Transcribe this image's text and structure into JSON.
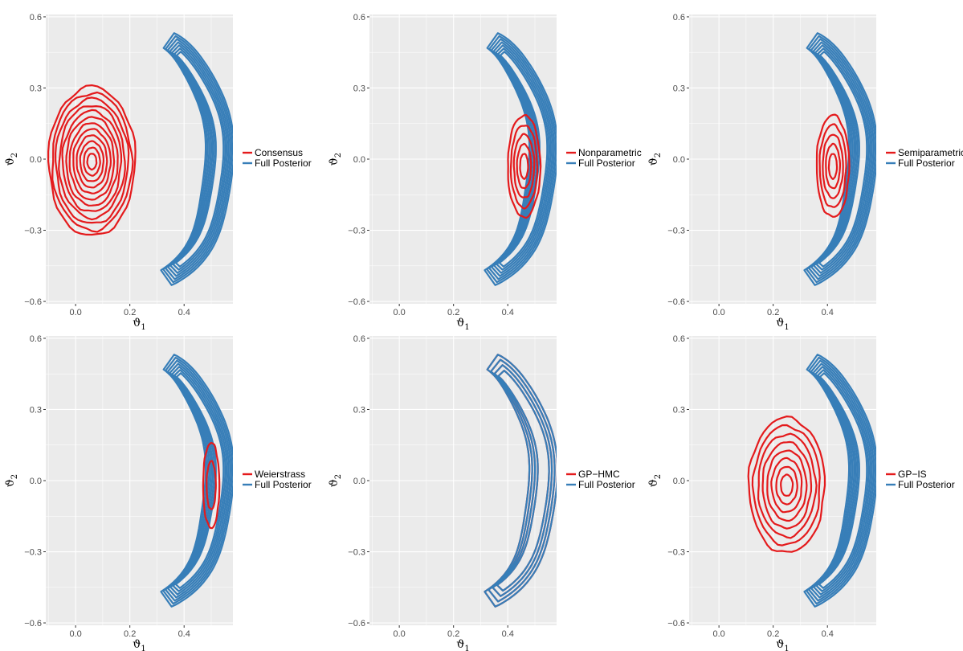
{
  "colors": {
    "method": "#e41a1c",
    "full_posterior": "#377eb8",
    "panel_bg": "#ebebeb",
    "grid": "#ffffff"
  },
  "chart_data": [
    {
      "type": "contour",
      "x": {
        "label": "ϑ",
        "label_sub": "1",
        "ticks": [
          0.0,
          0.2,
          0.4
        ],
        "tick_labels": [
          "0.0",
          "0.2",
          "0.4"
        ],
        "range": [
          -0.11,
          0.58
        ]
      },
      "y": {
        "label": "ϑ",
        "label_sub": "2",
        "ticks": [
          -0.6,
          -0.3,
          0.0,
          0.3,
          0.6
        ],
        "tick_labels": [
          "−0.6",
          "−0.3",
          "0.0",
          "0.3",
          "0.6"
        ],
        "range": [
          -0.61,
          0.61
        ]
      },
      "grid": true,
      "legend_position": "right",
      "series": [
        {
          "name": "Consensus",
          "color": "#e41a1c",
          "shape": "blob",
          "center": [
            0.06,
            -0.01
          ],
          "x_extent": [
            -0.1,
            0.22
          ],
          "y_extent": [
            -0.33,
            0.3
          ],
          "levels": 12
        },
        {
          "name": "Full Posterior",
          "color": "#377eb8",
          "shape": "banana",
          "x_extent": [
            0.24,
            0.54
          ],
          "y_extent": [
            -0.5,
            0.55
          ],
          "levels": 7
        }
      ]
    },
    {
      "type": "contour",
      "x": {
        "label": "ϑ",
        "label_sub": "1",
        "ticks": [
          0.0,
          0.2,
          0.4
        ],
        "tick_labels": [
          "0.0",
          "0.2",
          "0.4"
        ],
        "range": [
          -0.11,
          0.58
        ]
      },
      "y": {
        "label": "ϑ",
        "label_sub": "2",
        "ticks": [
          -0.6,
          -0.3,
          0.0,
          0.3,
          0.6
        ],
        "tick_labels": [
          "−0.6",
          "−0.3",
          "0.0",
          "0.3",
          "0.6"
        ],
        "range": [
          -0.61,
          0.61
        ]
      },
      "grid": true,
      "legend_position": "right",
      "series": [
        {
          "name": "Nonparametric",
          "color": "#e41a1c",
          "shape": "blob",
          "center": [
            0.46,
            -0.03
          ],
          "x_extent": [
            0.4,
            0.52
          ],
          "y_extent": [
            -0.26,
            0.17
          ],
          "levels": 5
        },
        {
          "name": "Full Posterior",
          "color": "#377eb8",
          "shape": "banana",
          "x_extent": [
            0.24,
            0.54
          ],
          "y_extent": [
            -0.5,
            0.55
          ],
          "levels": 7
        }
      ]
    },
    {
      "type": "contour",
      "x": {
        "label": "ϑ",
        "label_sub": "1",
        "ticks": [
          0.0,
          0.2,
          0.4
        ],
        "tick_labels": [
          "0.0",
          "0.2",
          "0.4"
        ],
        "range": [
          -0.11,
          0.58
        ]
      },
      "y": {
        "label": "ϑ",
        "label_sub": "2",
        "ticks": [
          -0.6,
          -0.3,
          0.0,
          0.3,
          0.6
        ],
        "tick_labels": [
          "−0.6",
          "−0.3",
          "0.0",
          "0.3",
          "0.6"
        ],
        "range": [
          -0.61,
          0.61
        ]
      },
      "grid": true,
      "legend_position": "right",
      "series": [
        {
          "name": "Semiparametric",
          "color": "#e41a1c",
          "shape": "blob",
          "center": [
            0.42,
            -0.03
          ],
          "x_extent": [
            0.36,
            0.48
          ],
          "y_extent": [
            -0.25,
            0.18
          ],
          "levels": 5
        },
        {
          "name": "Full Posterior",
          "color": "#377eb8",
          "shape": "banana",
          "x_extent": [
            0.24,
            0.54
          ],
          "y_extent": [
            -0.5,
            0.55
          ],
          "levels": 7
        }
      ]
    },
    {
      "type": "contour",
      "x": {
        "label": "ϑ",
        "label_sub": "1",
        "ticks": [
          0.0,
          0.2,
          0.4
        ],
        "tick_labels": [
          "0.0",
          "0.2",
          "0.4"
        ],
        "range": [
          -0.11,
          0.58
        ]
      },
      "y": {
        "label": "ϑ",
        "label_sub": "2",
        "ticks": [
          -0.6,
          -0.3,
          0.0,
          0.3,
          0.6
        ],
        "tick_labels": [
          "−0.6",
          "−0.3",
          "0.0",
          "0.3",
          "0.6"
        ],
        "range": [
          -0.61,
          0.61
        ]
      },
      "grid": true,
      "legend_position": "right",
      "series": [
        {
          "name": "Weierstrass",
          "color": "#e41a1c",
          "shape": "blob",
          "center": [
            0.5,
            -0.02
          ],
          "x_extent": [
            0.47,
            0.53
          ],
          "y_extent": [
            -0.18,
            0.18
          ],
          "levels": 2
        },
        {
          "name": "Full Posterior",
          "color": "#377eb8",
          "shape": "banana",
          "x_extent": [
            0.24,
            0.54
          ],
          "y_extent": [
            -0.5,
            0.55
          ],
          "levels": 7
        }
      ]
    },
    {
      "type": "contour",
      "x": {
        "label": "ϑ",
        "label_sub": "1",
        "ticks": [
          0.0,
          0.2,
          0.4
        ],
        "tick_labels": [
          "0.0",
          "0.2",
          "0.4"
        ],
        "range": [
          -0.11,
          0.58
        ]
      },
      "y": {
        "label": "ϑ",
        "label_sub": "2",
        "ticks": [
          -0.6,
          -0.3,
          0.0,
          0.3,
          0.6
        ],
        "tick_labels": [
          "−0.6",
          "−0.3",
          "0.0",
          "0.3",
          "0.6"
        ],
        "range": [
          -0.61,
          0.61
        ]
      },
      "grid": true,
      "legend_position": "right",
      "series": [
        {
          "name": "GP−HMC",
          "color": "#e41a1c",
          "shape": "banana",
          "x_extent": [
            0.24,
            0.54
          ],
          "y_extent": [
            -0.5,
            0.55
          ],
          "levels": 4
        },
        {
          "name": "Full Posterior",
          "color": "#377eb8",
          "shape": "banana",
          "x_extent": [
            0.24,
            0.54
          ],
          "y_extent": [
            -0.5,
            0.55
          ],
          "levels": 4
        }
      ]
    },
    {
      "type": "contour",
      "x": {
        "label": "ϑ",
        "label_sub": "1",
        "ticks": [
          0.0,
          0.2,
          0.4
        ],
        "tick_labels": [
          "0.0",
          "0.2",
          "0.4"
        ],
        "range": [
          -0.11,
          0.58
        ]
      },
      "y": {
        "label": "ϑ",
        "label_sub": "2",
        "ticks": [
          -0.6,
          -0.3,
          0.0,
          0.3,
          0.6
        ],
        "tick_labels": [
          "−0.6",
          "−0.3",
          "0.0",
          "0.3",
          "0.6"
        ],
        "range": [
          -0.61,
          0.61
        ]
      },
      "grid": true,
      "legend_position": "right",
      "series": [
        {
          "name": "GP−IS",
          "color": "#e41a1c",
          "shape": "blob",
          "center": [
            0.25,
            -0.02
          ],
          "x_extent": [
            0.11,
            0.39
          ],
          "y_extent": [
            -0.32,
            0.25
          ],
          "levels": 8
        },
        {
          "name": "Full Posterior",
          "color": "#377eb8",
          "shape": "banana",
          "x_extent": [
            0.24,
            0.54
          ],
          "y_extent": [
            -0.5,
            0.55
          ],
          "levels": 7
        }
      ]
    }
  ]
}
